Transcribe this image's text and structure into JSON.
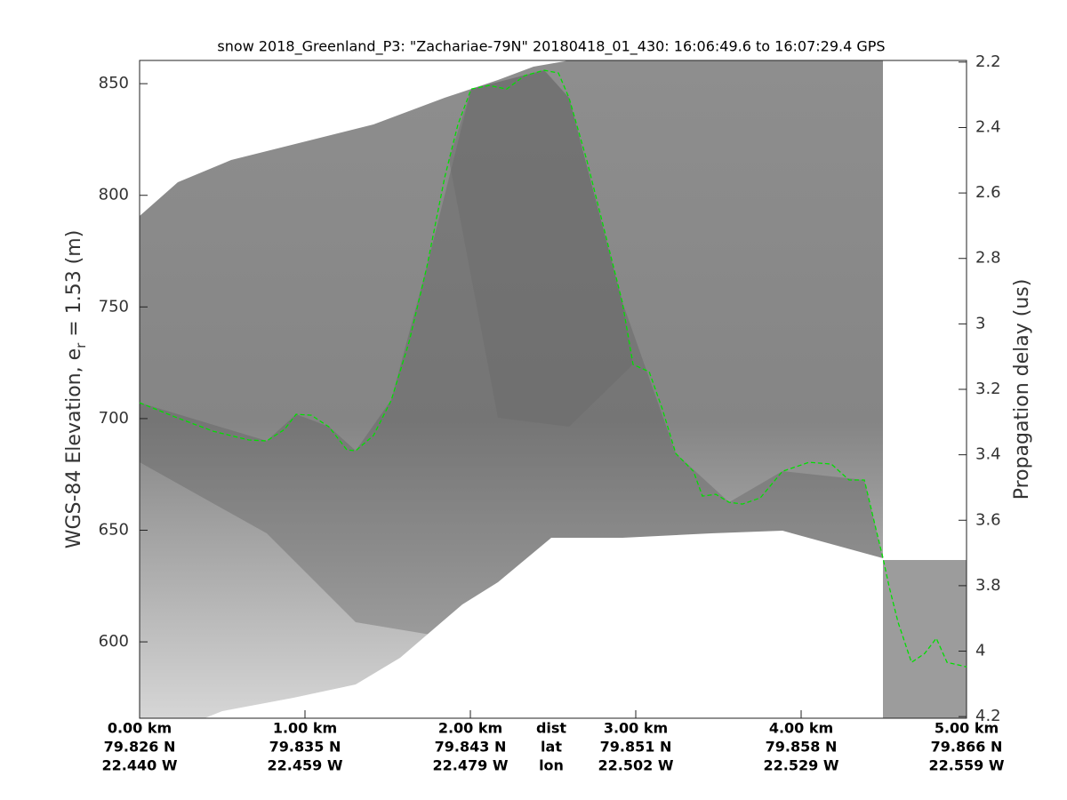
{
  "chart_data": {
    "type": "line",
    "title": "snow 2018_Greenland_P3: \"Zachariae-79N\"  20180418_01_430: 16:06:49.6 to 16:07:29.4 GPS",
    "ylabel": {
      "text": "WGS-84 Elevation, e",
      "subscript": "r",
      "suffix": " = 1.53 (m)"
    },
    "y2label": "Propagation delay (us)",
    "x": [
      0,
      0.23,
      0.446,
      0.661,
      0.769,
      0.876,
      0.946,
      1.038,
      1.145,
      1.253,
      1.306,
      1.414,
      1.522,
      1.629,
      1.737,
      1.844,
      1.925,
      2.005,
      2.113,
      2.22,
      2.328,
      2.446,
      2.532,
      2.597,
      2.704,
      2.812,
      2.919,
      2.984,
      3.081,
      3.161,
      3.242,
      3.349,
      3.403,
      3.484,
      3.565,
      3.645,
      3.753,
      3.887,
      4.048,
      4.183,
      4.29,
      4.382,
      4.452,
      4.495,
      4.532,
      4.586,
      4.667,
      4.747,
      4.817,
      4.882,
      5.0
    ],
    "values": [
      707.1,
      700.3,
      694.3,
      690.4,
      690.0,
      695.1,
      701.9,
      701.5,
      696.3,
      686.0,
      685.6,
      692.4,
      708.3,
      734.2,
      768.0,
      807.8,
      831.7,
      847.6,
      849.2,
      847.6,
      853.6,
      856.0,
      854.8,
      843.6,
      815.8,
      783.9,
      752.1,
      724.2,
      721.0,
      704.3,
      684.4,
      676.4,
      665.3,
      666.1,
      662.5,
      661.7,
      664.5,
      676.4,
      680.4,
      679.6,
      672.5,
      672.5,
      650.6,
      637.4,
      624.7,
      608.8,
      590.8,
      594.8,
      601.6,
      590.8,
      588.8
    ],
    "color": "#00e000",
    "line_style": "dashed",
    "xlim": [
      0,
      5
    ],
    "xticks": [
      {
        "value": 0,
        "label": "0.00 km"
      },
      {
        "value": 1,
        "label": "1.00 km"
      },
      {
        "value": 2,
        "label": "2.00 km"
      },
      {
        "value": 3,
        "label": "3.00 km"
      },
      {
        "value": 4,
        "label": "4.00 km"
      },
      {
        "value": 5,
        "label": "5.00 km"
      }
    ],
    "xtick_lat": [
      "79.826 N",
      "79.835 N",
      "79.843 N",
      "79.851 N",
      "79.858 N",
      "79.866 N"
    ],
    "xtick_lon": [
      "22.440 W",
      "22.459 W",
      "22.479 W",
      "22.502 W",
      "22.529 W",
      "22.559 W"
    ],
    "x_row_names": [
      "dist",
      "lat",
      "lon"
    ],
    "ylim": [
      565.8,
      860.4
    ],
    "yticks": [
      600,
      650,
      700,
      750,
      800,
      850
    ],
    "y2lim": [
      4.205,
      2.195
    ],
    "y2ticks": [
      2.2,
      2.4,
      2.6,
      2.8,
      3,
      3.2,
      3.4,
      3.6,
      3.8,
      4,
      4.2
    ]
  }
}
